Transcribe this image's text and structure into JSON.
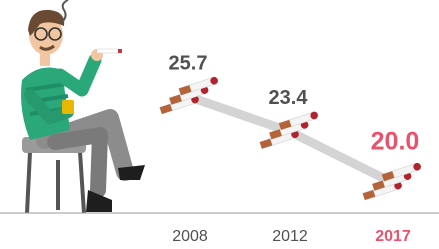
{
  "chart_data": {
    "type": "line",
    "categories": [
      "2008",
      "2012",
      "2017"
    ],
    "values": [
      25.7,
      23.4,
      20.0
    ],
    "value_labels": [
      "25.7",
      "23.4",
      "20.0"
    ],
    "color": "#505050",
    "line_color": "#d4d4d4",
    "highlight_color": "#e8536b"
  }
}
